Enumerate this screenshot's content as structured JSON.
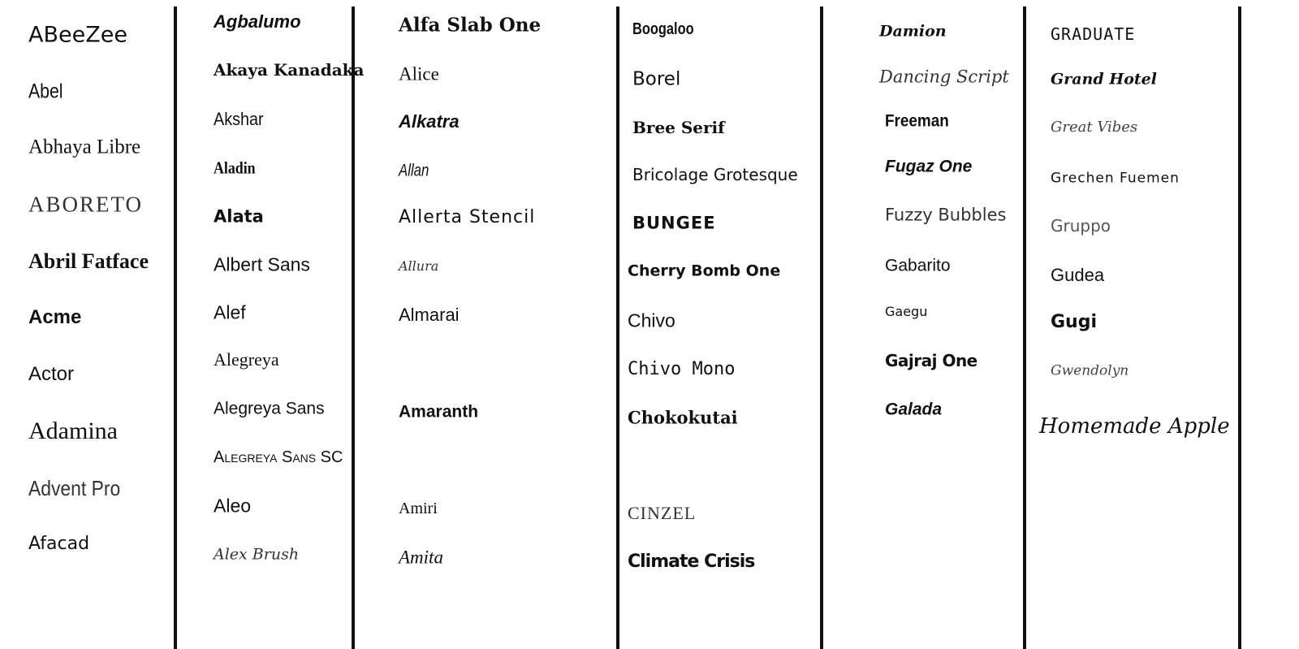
{
  "columns": [
    [
      "ABeeZee",
      "Abel",
      "Abhaya Libre",
      "ABORETO",
      "Abril Fatface",
      "Acme",
      "Actor",
      "Adamina",
      "Advent Pro",
      "Afacad"
    ],
    [
      "Agbalumo",
      "Akaya Kanadaka",
      "Akshar",
      "Aladin",
      "Alata",
      "Albert Sans",
      "Alef",
      "Alegreya",
      "Alegreya Sans",
      "Alegreya Sans SC",
      "Aleo",
      "Alex Brush"
    ],
    [
      "Alfa Slab One",
      "Alice",
      "Alkatra",
      "Allan",
      "Allerta Stencil",
      "Allura",
      "Almarai",
      "Amaranth",
      "Amiri",
      "Amita"
    ],
    [
      "Boogaloo",
      "Borel",
      "Bree Serif",
      "Bricolage Grotesque",
      "BUNGEE",
      "Cherry Bomb One",
      "Chivo",
      "Chivo Mono",
      "Chokokutai",
      "CINZEL",
      "Climate Crisis"
    ],
    [
      "Damion",
      "Dancing Script",
      "Freeman",
      "Fugaz One",
      "Fuzzy Bubbles",
      "Gabarito",
      "Gaegu",
      "Gajraj One",
      "Galada"
    ],
    [
      "GRADUATE",
      "Grand Hotel",
      "Great Vibes",
      "Grechen Fuemen",
      "Gruppo",
      "Gudea",
      "Gugi",
      "Gwendolyn",
      "Homemade Apple"
    ]
  ]
}
